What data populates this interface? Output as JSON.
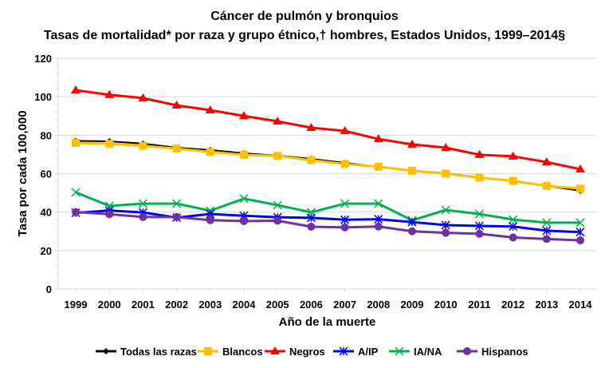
{
  "chart_data": {
    "type": "line",
    "title": "Cáncer de pulmón y bronquios",
    "subtitle": "Tasas de mortalidad* por raza y grupo étnico,† hombres, Estados Unidos, 1999–2014§",
    "xlabel": "Año de la muerte",
    "ylabel": "Tasa por cada 100,000",
    "ylim": [
      0,
      120
    ],
    "yticks": [
      0,
      20,
      40,
      60,
      80,
      100,
      120
    ],
    "grid": true,
    "legend": "bottom",
    "categories": [
      "1999",
      "2000",
      "2001",
      "2002",
      "2003",
      "2004",
      "2005",
      "2006",
      "2007",
      "2008",
      "2009",
      "2010",
      "2011",
      "2012",
      "2013",
      "2014"
    ],
    "series": [
      {
        "name": "Todas las razas",
        "color": "#000000",
        "marker": "diamond",
        "values": [
          77,
          76.8,
          75.6,
          73.5,
          72.3,
          70.6,
          69.4,
          67.7,
          65.6,
          63.5,
          61.5,
          60.2,
          58.1,
          56,
          53.6,
          51.1
        ]
      },
      {
        "name": "Blancos",
        "color": "#FFC000",
        "marker": "square",
        "values": [
          76,
          75.5,
          74.5,
          73,
          71.3,
          69.8,
          69.2,
          67,
          65,
          63.6,
          61.5,
          60,
          57.9,
          56.2,
          53.6,
          52.2
        ]
      },
      {
        "name": "Negros",
        "color": "#FF0000",
        "marker": "triangle",
        "values": [
          103.4,
          101,
          99.3,
          95.5,
          93,
          90,
          87.2,
          83.9,
          82.2,
          78,
          75.2,
          73.5,
          69.8,
          69,
          66,
          62.3
        ]
      },
      {
        "name": "A/IP",
        "color": "#0000FF",
        "marker": "star",
        "values": [
          39.6,
          40.8,
          39.8,
          37.1,
          39,
          38.1,
          37.3,
          37,
          36,
          36.3,
          34.8,
          33.2,
          32.8,
          32.5,
          30.3,
          29.6
        ]
      },
      {
        "name": "IA/NA",
        "color": "#00B050",
        "marker": "x",
        "values": [
          50.3,
          43.2,
          44.4,
          44.4,
          40.7,
          47,
          43.6,
          39.9,
          44.4,
          44.4,
          35.7,
          41.1,
          39,
          36.1,
          34.5,
          34.5
        ]
      },
      {
        "name": "Hispanos",
        "color": "#7030A0",
        "marker": "circle",
        "values": [
          40,
          38.9,
          37.4,
          37.4,
          35.8,
          35.3,
          35.5,
          32.4,
          32,
          32.5,
          30,
          29.2,
          28.7,
          26.8,
          26,
          25.3
        ]
      }
    ]
  }
}
